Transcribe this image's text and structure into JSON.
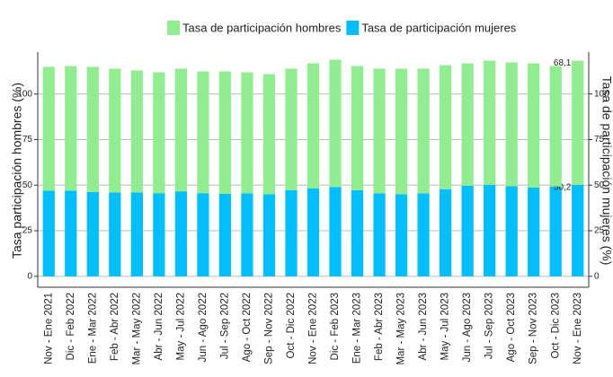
{
  "chart_data": {
    "type": "stacked_bar",
    "categories": [
      "Nov - Ene 2021",
      "Dic - Feb 2022",
      "Ene - Mar 2022",
      "Feb - Abr 2022",
      "Mar - May 2022",
      "Abr - Jun 2022",
      "May - Jul 2022",
      "Jun - Ago 2022",
      "Jul - Sep 2022",
      "Ago - Oct 2022",
      "Sep - Nov 2022",
      "Oct - Dic 2022",
      "Nov - Ene 2022",
      "Dic - Feb 2023",
      "Ene - Mar 2023",
      "Feb - Abr 2023",
      "Mar - May 2023",
      "Abr - Jun 2023",
      "May - Jul 2023",
      "Jun - Ago 2023",
      "Jul - Sep 2023",
      "Ago - Oct 2023",
      "Sep - Nov 2023",
      "Oct - Dic 2023",
      "Nov - Ene 2023"
    ],
    "series": [
      {
        "name": "Tasa de participación mujeres",
        "color": "#00bfff",
        "values": [
          47,
          47,
          46.3,
          46,
          46,
          45.6,
          46.6,
          45.6,
          45.2,
          45.5,
          45,
          47.3,
          48.3,
          49,
          47.2,
          45.5,
          45,
          45.5,
          47.8,
          49.7,
          50.2,
          49.4,
          48.7,
          49.3,
          50.2
        ],
        "value_labels": [
          null,
          null,
          null,
          null,
          null,
          null,
          null,
          null,
          null,
          null,
          null,
          null,
          null,
          null,
          null,
          null,
          null,
          null,
          null,
          null,
          null,
          null,
          null,
          null,
          "50,2"
        ]
      },
      {
        "name": "Tasa de participación hombres",
        "color": "#90ee90",
        "values": [
          67.9,
          68.3,
          68.6,
          67.9,
          66.9,
          66.3,
          67.3,
          66.8,
          67.2,
          66.4,
          65.9,
          66.6,
          68.5,
          69.8,
          68.1,
          68.4,
          68.9,
          68.4,
          68.0,
          67.1,
          68.1,
          67.9,
          68.1,
          66.0,
          68.1
        ],
        "value_labels": [
          null,
          null,
          null,
          null,
          null,
          null,
          null,
          null,
          null,
          null,
          null,
          null,
          null,
          null,
          null,
          null,
          null,
          null,
          null,
          null,
          null,
          null,
          null,
          null,
          "68,1"
        ]
      }
    ],
    "legend_order": [
      "Tasa de participación hombres",
      "Tasa de participación mujeres"
    ],
    "ylabel": "Tasa participación hombres (%)",
    "y2label": "Tasa de participación mujeres (%)",
    "ylim": [
      -6,
      123
    ],
    "yticks": [
      0,
      25,
      50,
      75,
      100
    ],
    "y2lim": [
      -6,
      123
    ],
    "y2ticks": [
      0,
      25,
      50,
      75,
      100
    ],
    "grid": true
  }
}
